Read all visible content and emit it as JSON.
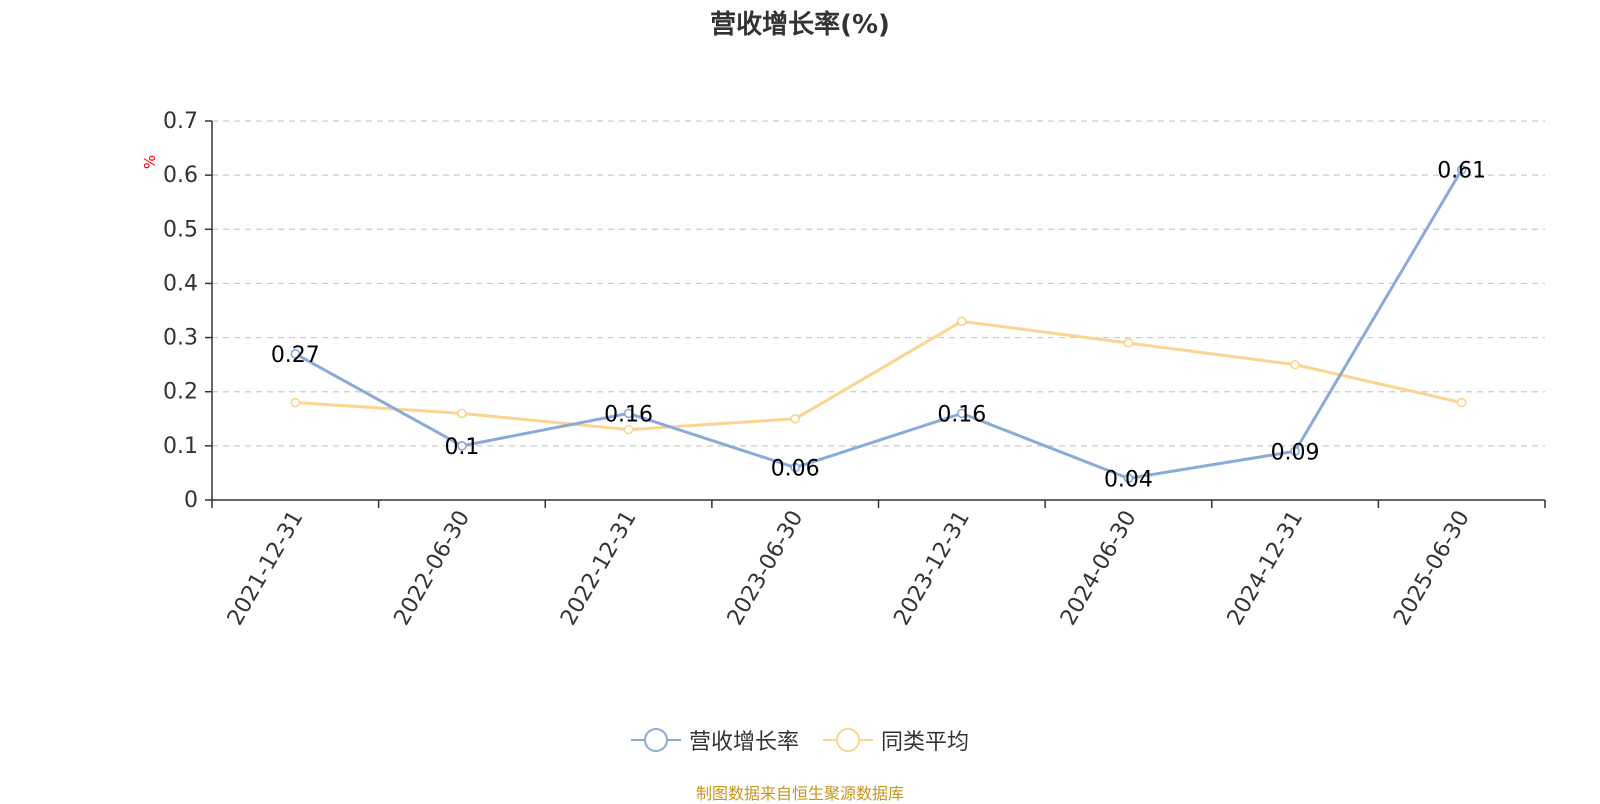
{
  "chart_data": {
    "type": "line",
    "title": "营收增长率(%)",
    "ylabel": "%",
    "xlabel": "",
    "categories": [
      "2021-12-31",
      "2022-06-30",
      "2022-12-31",
      "2023-06-30",
      "2023-12-31",
      "2024-06-30",
      "2024-12-31",
      "2025-06-30"
    ],
    "ylim": [
      0,
      0.7
    ],
    "yticks": [
      "0",
      "0.1",
      "0.2",
      "0.3",
      "0.4",
      "0.5",
      "0.6",
      "0.7"
    ],
    "grid": true,
    "legend_position": "bottom",
    "series": [
      {
        "name": "营收增长率",
        "color": "#8aaad8",
        "values": [
          0.27,
          0.1,
          0.16,
          0.06,
          0.16,
          0.04,
          0.09,
          0.61
        ],
        "labels": [
          "0.27",
          "0.1",
          "0.16",
          "0.06",
          "0.16",
          "0.04",
          "0.09",
          "0.61"
        ]
      },
      {
        "name": "同类平均",
        "color": "#fad490",
        "values": [
          0.18,
          0.16,
          0.13,
          0.15,
          0.33,
          0.29,
          0.25,
          0.18
        ]
      }
    ]
  },
  "source_text": "制图数据来自恒生聚源数据库",
  "colors": {
    "axis": "#333333",
    "grid": "#cccccc",
    "ylabel": "#ff0000",
    "source": "#c8961e"
  }
}
